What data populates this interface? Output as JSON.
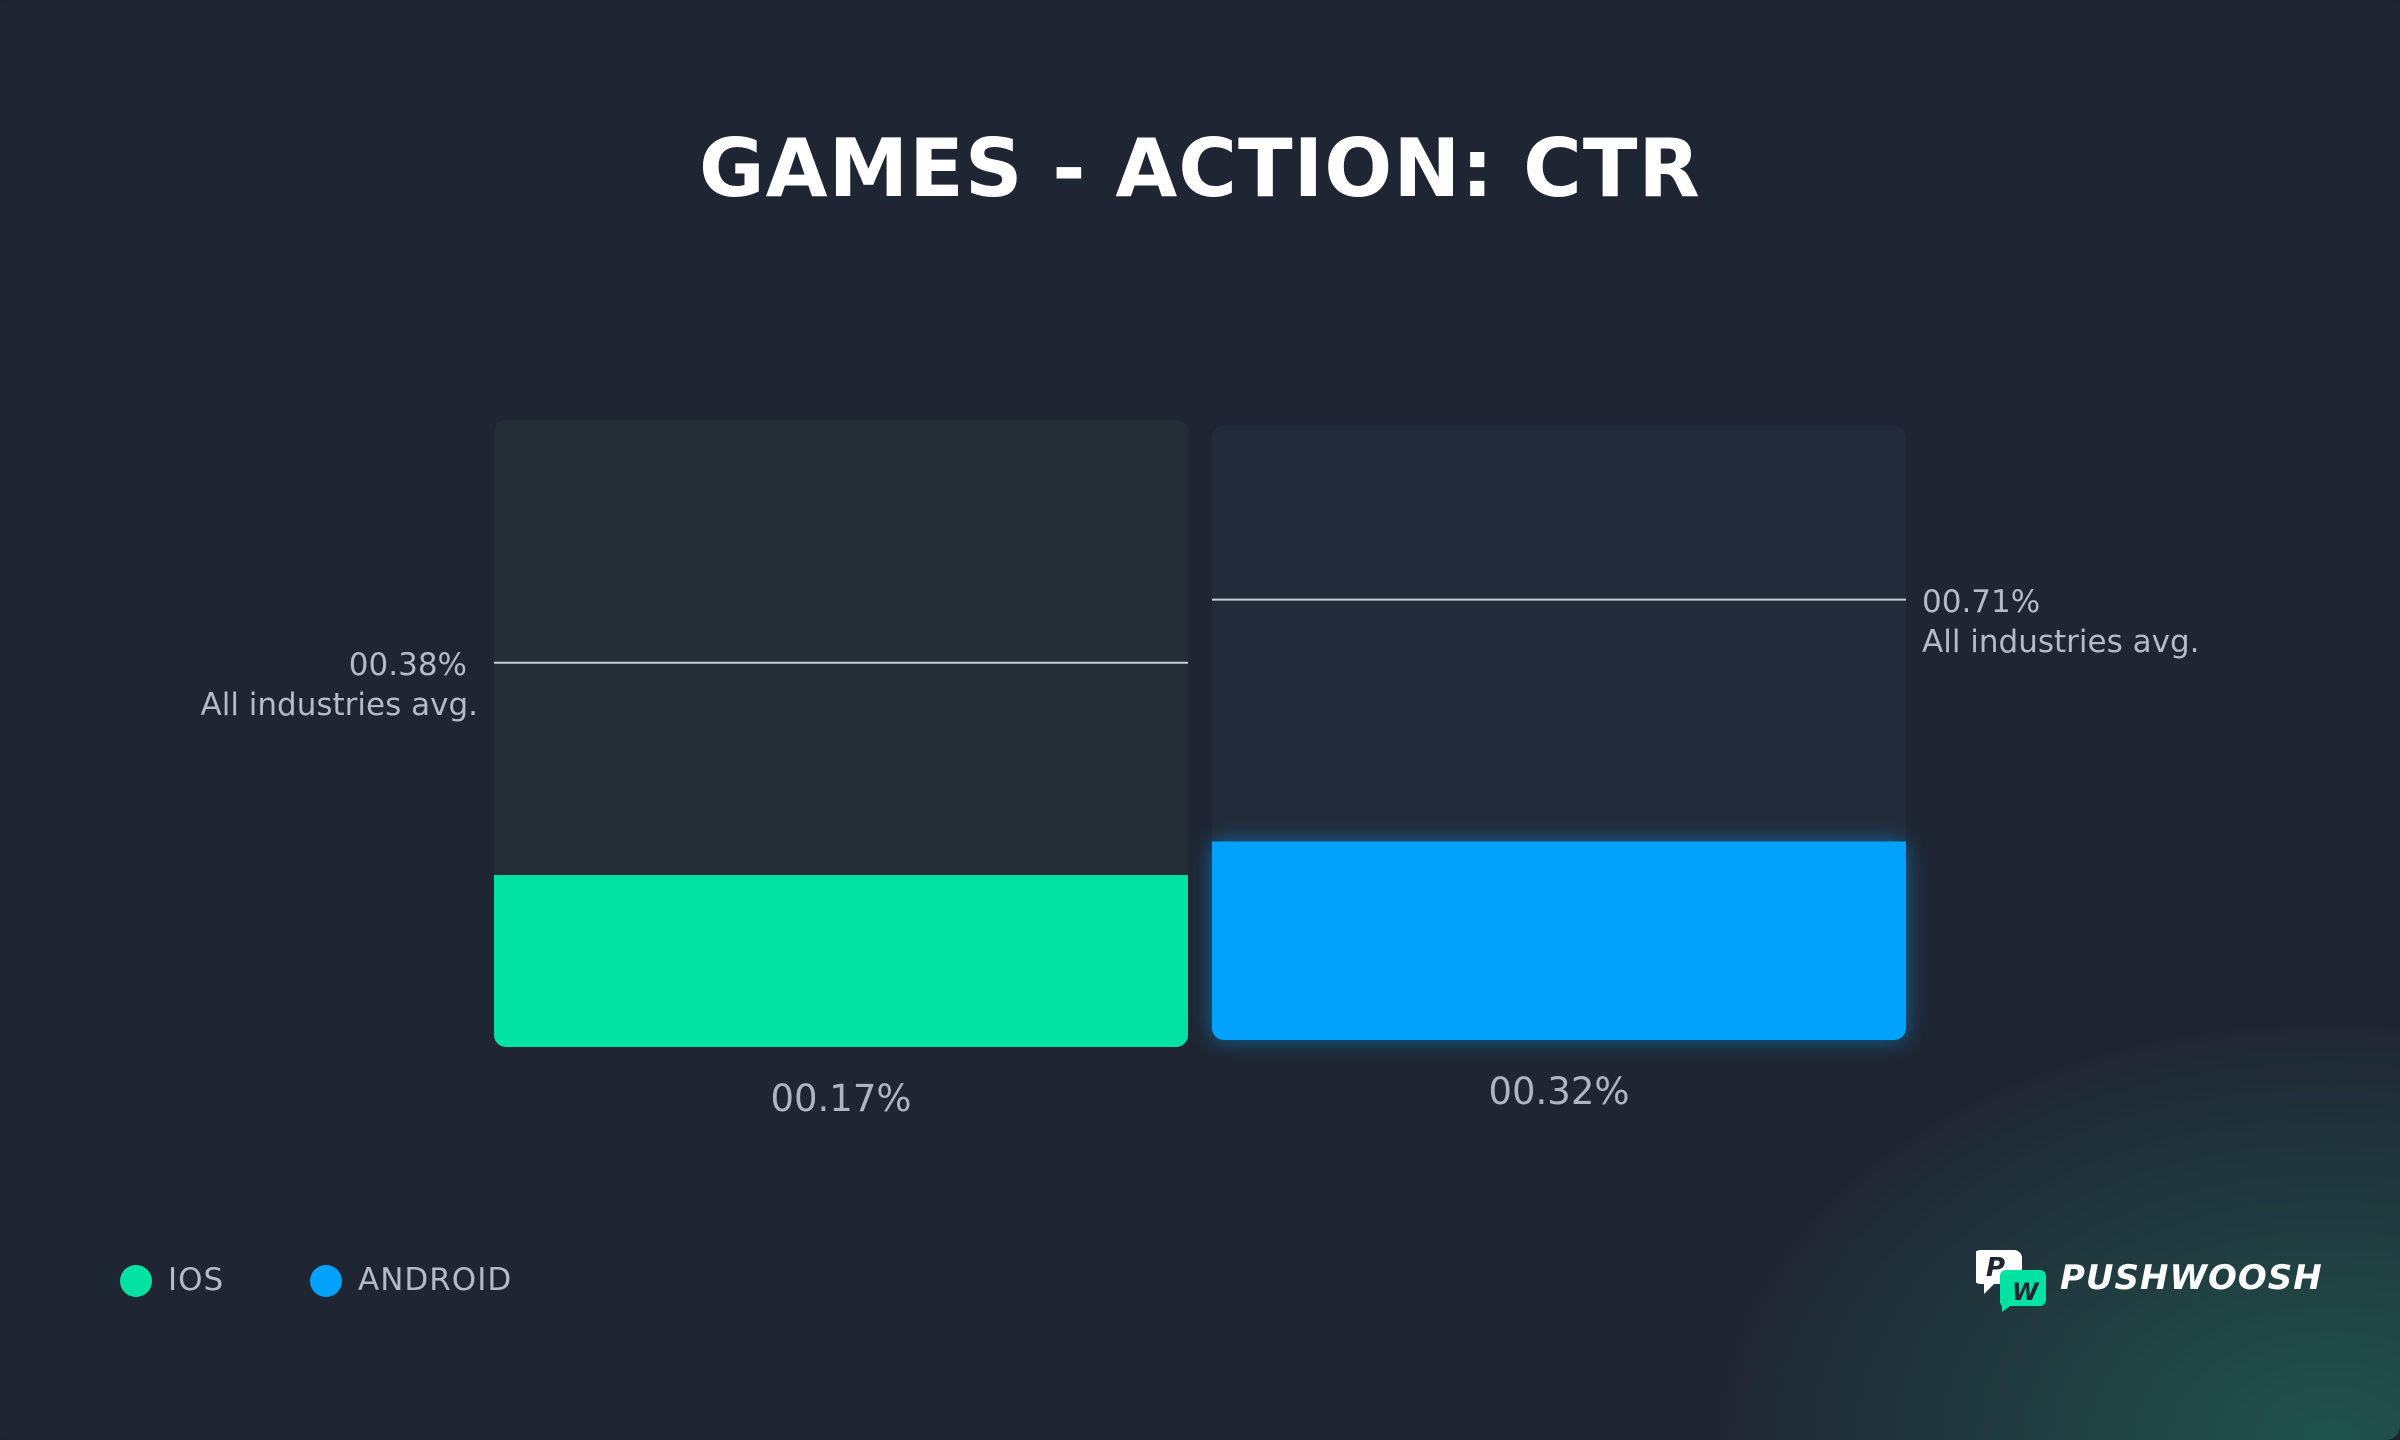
{
  "chart_data": {
    "type": "bar",
    "title": "GAMES - ACTION: CTR",
    "categories": [
      "IOS",
      "ANDROID"
    ],
    "series": [
      {
        "name": "IOS",
        "color": "#02e3a3",
        "value": 0.17,
        "value_label": "00.17%",
        "avg": 0.38,
        "avg_label": "00.38%",
        "avg_text": "All industries avg.",
        "scale_max": 0.62
      },
      {
        "name": "ANDROID",
        "color": "#03a3fd",
        "value": 0.32,
        "value_label": "00.32%",
        "avg": 0.71,
        "avg_label": "00.71%",
        "avg_text": "All industries avg.",
        "scale_max": 0.99
      }
    ],
    "legend": [
      {
        "label": "IOS",
        "color": "#02e3a3"
      },
      {
        "label": "ANDROID",
        "color": "#03a3fd"
      }
    ],
    "grid": false,
    "legend_position": "bottom-left"
  },
  "brand": {
    "name": "PUSHWOOSH",
    "accent": "#02e3a3"
  }
}
